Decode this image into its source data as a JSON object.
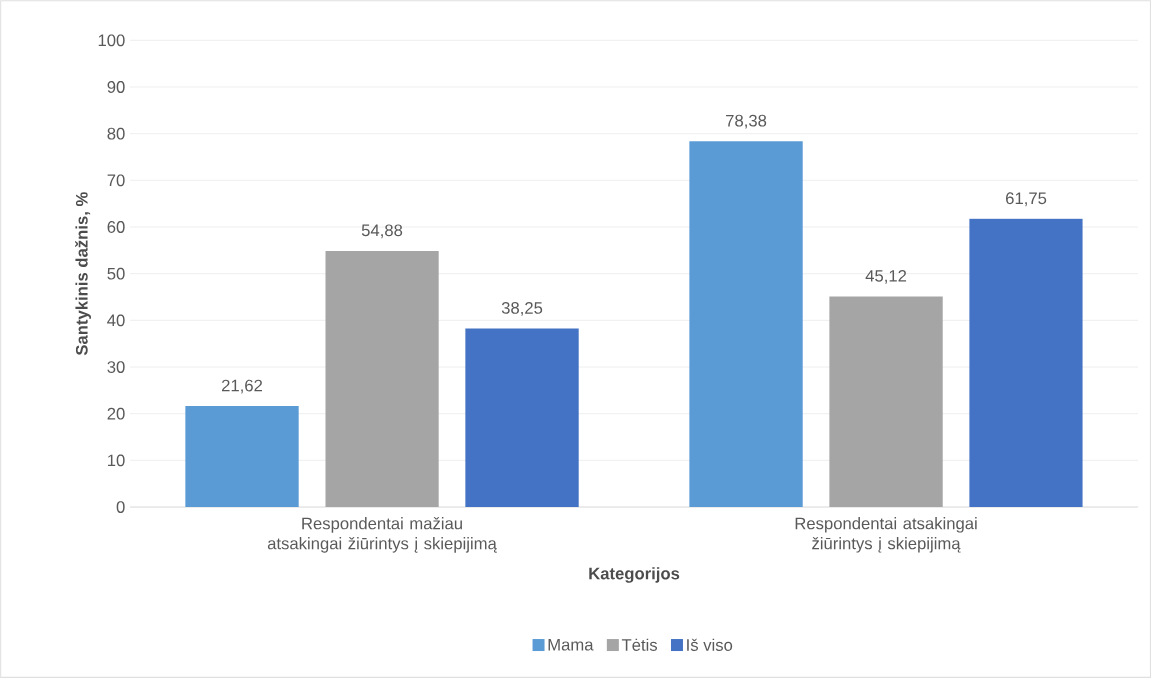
{
  "chart_data": {
    "type": "bar",
    "xlabel": "Kategorijos",
    "ylabel": "Santykinis dažnis, %",
    "categories": [
      "Respondentai mažiau atsakingai žiūrintys į skiepijimą",
      "Respondentai atsakingai žiūrintys į skiepijimą"
    ],
    "series": [
      {
        "name": "Mama",
        "color": "#5b9bd5",
        "values": [
          21.62,
          78.38
        ],
        "value_labels": [
          "21,62",
          "78,38"
        ]
      },
      {
        "name": "Tėtis",
        "color": "#a5a5a5",
        "values": [
          54.88,
          45.12
        ],
        "value_labels": [
          "54,88",
          "45,12"
        ]
      },
      {
        "name": "Iš viso",
        "color": "#4472c4",
        "values": [
          38.25,
          61.75
        ],
        "value_labels": [
          "38,25",
          "61,75"
        ]
      }
    ],
    "ylim": [
      0,
      100
    ],
    "yticks": [
      0,
      10,
      20,
      30,
      40,
      50,
      60,
      70,
      80,
      90,
      100
    ],
    "grid": "y",
    "legend": "bottom"
  }
}
